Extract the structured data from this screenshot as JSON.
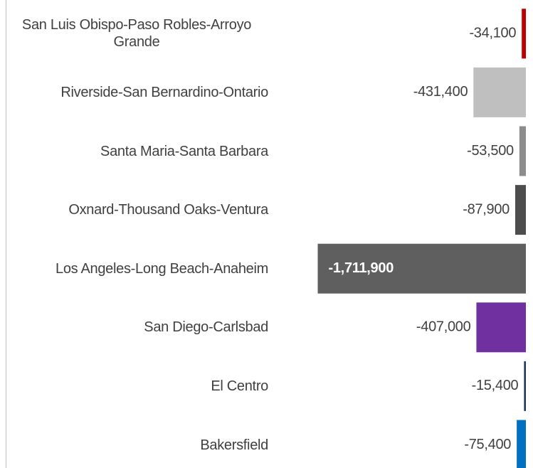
{
  "chart_data": {
    "type": "bar",
    "orientation": "horizontal",
    "categories": [
      "San Luis Obispo-Paso Robles-Arroyo Grande",
      "Riverside-San Bernardino-Ontario",
      "Santa Maria-Santa Barbara",
      "Oxnard-Thousand Oaks-Ventura",
      "Los Angeles-Long Beach-Anaheim",
      "San Diego-Carlsbad",
      "El Centro",
      "Bakersfield"
    ],
    "values": [
      -34100,
      -431400,
      -53500,
      -87900,
      -1711900,
      -407000,
      -15400,
      -75400
    ],
    "value_labels": [
      "-34,100",
      "-431,400",
      "-53,500",
      "-87,900",
      "-1,711,900",
      "-407,000",
      "-15,400",
      "-75,400"
    ],
    "colors": [
      "#c00000",
      "#bfbfbf",
      "#8c8c8c",
      "#4d4d4d",
      "#5f5f5f",
      "#7030a0",
      "#1f3864",
      "#0070c0"
    ],
    "xlim": [
      -1750000,
      0
    ]
  }
}
